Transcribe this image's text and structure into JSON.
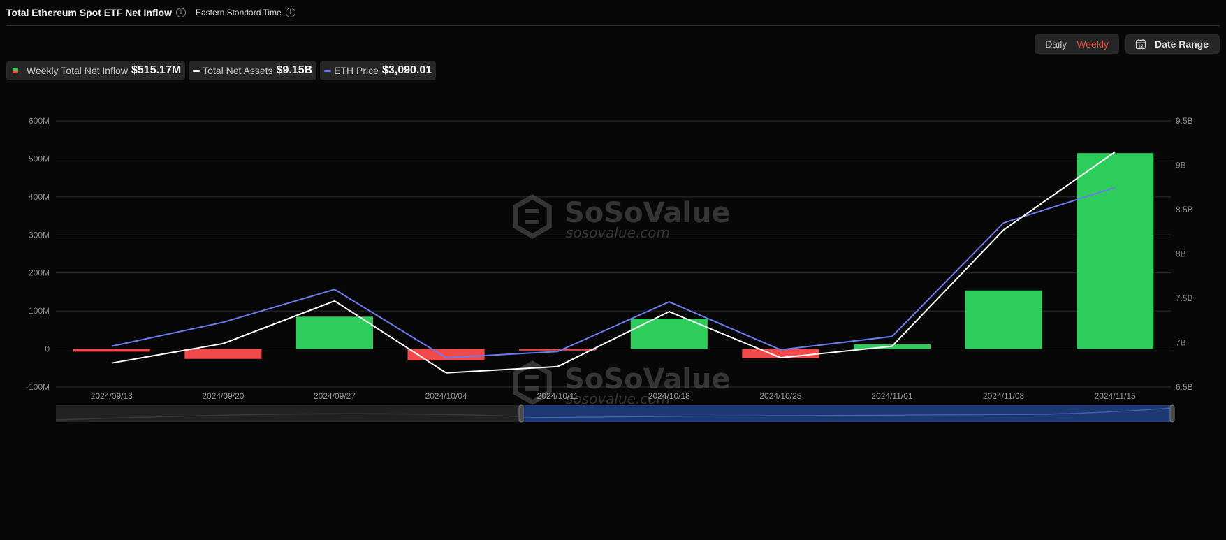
{
  "header": {
    "title": "Total Ethereum Spot ETF Net Inflow",
    "timezone": "Eastern Standard Time"
  },
  "controls": {
    "daily_label": "Daily",
    "weekly_label": "Weekly",
    "date_range_label": "Date Range"
  },
  "legend": {
    "inflow_label": "Weekly Total Net Inflow",
    "inflow_value": "$515.17M",
    "assets_label": "Total Net Assets",
    "assets_value": "$9.15B",
    "price_label": "ETH Price",
    "price_value": "$3,090.01"
  },
  "watermark": {
    "brand": "SoSoValue",
    "domain": "sosovalue.com"
  },
  "colors": {
    "positive": "#2ecc5a",
    "negative": "#f24a4a",
    "assets_line": "#ffffff",
    "price_line": "#6b7bf0",
    "accent": "#e84a3a"
  },
  "chart_data": {
    "type": "bar",
    "categories": [
      "2024/09/13",
      "2024/09/20",
      "2024/09/27",
      "2024/10/04",
      "2024/10/11",
      "2024/10/18",
      "2024/10/25",
      "2024/11/01",
      "2024/11/08",
      "2024/11/15"
    ],
    "series": [
      {
        "name": "Weekly Total Net Inflow",
        "type": "bar",
        "axis": "left",
        "values": [
          -7,
          -26,
          85,
          -30,
          -4,
          80,
          -24,
          12,
          154,
          515.17
        ]
      },
      {
        "name": "Total Net Assets",
        "type": "line",
        "axis": "right",
        "values": [
          6.77,
          6.99,
          7.47,
          6.66,
          6.73,
          7.35,
          6.83,
          6.96,
          8.27,
          9.15
        ]
      },
      {
        "name": "ETH Price",
        "type": "line",
        "axis": "right",
        "values": [
          6.96,
          7.23,
          7.6,
          6.83,
          6.9,
          7.46,
          6.92,
          7.07,
          8.35,
          8.75
        ]
      }
    ],
    "y_left": {
      "ticks": [
        "600M",
        "500M",
        "400M",
        "300M",
        "200M",
        "100M",
        "0",
        "-100M"
      ],
      "min": -100,
      "max": 600
    },
    "y_right": {
      "ticks": [
        "9.5B",
        "9B",
        "8.5B",
        "8B",
        "7.5B",
        "7B",
        "6.5B"
      ],
      "min": 6.5,
      "max": 9.5
    },
    "grid": true
  }
}
